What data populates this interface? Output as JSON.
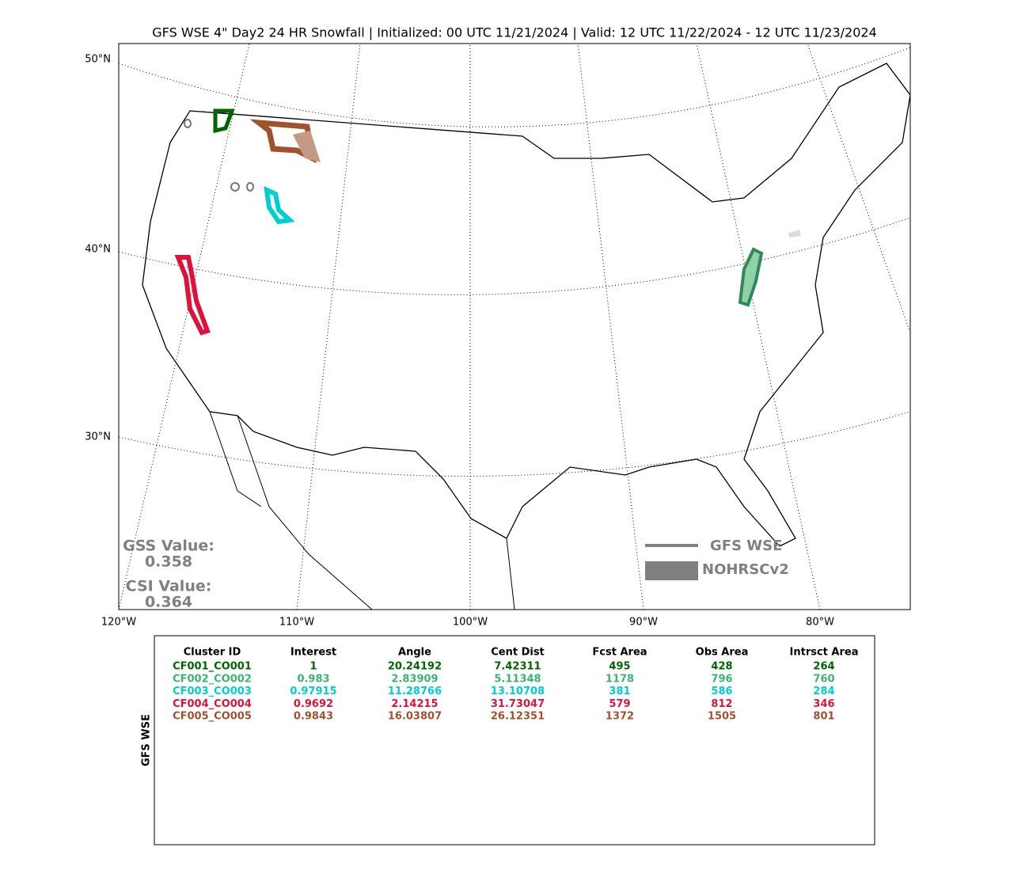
{
  "title": "GFS WSE 4\" Day2 24 HR Snowfall | Initialized: 00 UTC 11/21/2024 | Valid: 12 UTC 11/22/2024 - 12 UTC 11/23/2024",
  "map": {
    "lat_labels": [
      "50°N",
      "40°N",
      "30°N"
    ],
    "lon_labels": [
      "120°W",
      "110°W",
      "100°W",
      "90°W",
      "80°W"
    ],
    "gss_label": "GSS Value:",
    "gss_value": "0.358",
    "csi_label": "CSI Value:",
    "csi_value": "0.364",
    "legend": [
      "GFS WSE",
      "NOHRSCv2"
    ]
  },
  "table": {
    "side_label": "GFS WSE",
    "columns": [
      "Cluster ID",
      "Interest",
      "Angle",
      "Cent Dist",
      "Fcst Area",
      "Obs Area",
      "Intrsct Area"
    ],
    "rows": [
      {
        "color": "#006400",
        "cells": [
          "CF001_CO001",
          "1",
          "20.24192",
          "7.42311",
          "495",
          "428",
          "264"
        ]
      },
      {
        "color": "#3cb371",
        "cells": [
          "CF002_CO002",
          "0.983",
          "2.83909",
          "5.11348",
          "1178",
          "796",
          "760"
        ]
      },
      {
        "color": "#00ced1",
        "cells": [
          "CF003_CO003",
          "0.97915",
          "11.28766",
          "13.10708",
          "381",
          "586",
          "284"
        ]
      },
      {
        "color": "#dc143c",
        "cells": [
          "CF004_CO004",
          "0.9692",
          "2.14215",
          "31.73047",
          "579",
          "812",
          "346"
        ]
      },
      {
        "color": "#a0522d",
        "cells": [
          "CF005_CO005",
          "0.9843",
          "16.03807",
          "26.12351",
          "1372",
          "1505",
          "801"
        ]
      }
    ]
  }
}
